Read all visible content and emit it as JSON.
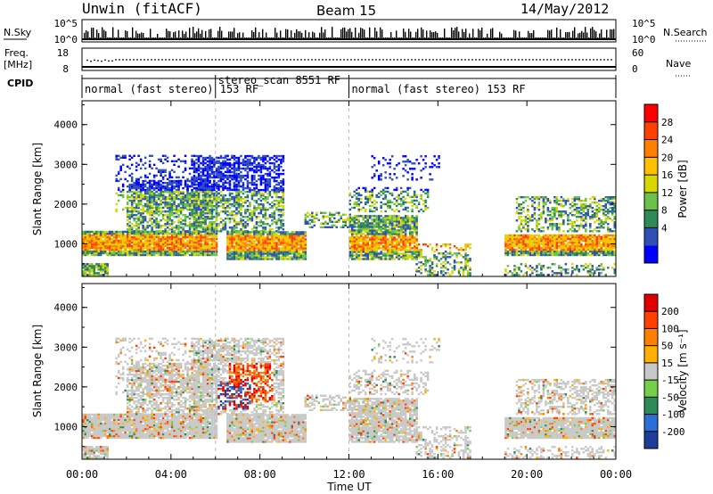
{
  "header": {
    "title": "Unwin (fitACF)",
    "beam": "Beam 15",
    "date": "14/May/2012"
  },
  "top_panel": {
    "nsky_label": "N.Sky",
    "nsky_ticks": [
      "10^5",
      "10^0"
    ],
    "nsearch_label": "N.Search",
    "nsearch_ticks": [
      "10^5",
      "10^0"
    ],
    "freq_label": "Freq.",
    "freq_unit": "[MHz]",
    "freq_ticks": [
      "18",
      "8"
    ],
    "nave_label": "Nave",
    "nave_ticks": [
      "60",
      "0"
    ],
    "cpid_label": "CPID",
    "cpid_segments": [
      {
        "label": "normal (fast stereo) 153 RF",
        "start_hour": 0,
        "end_hour": 6
      },
      {
        "label": "stereo_scan 8551 RF",
        "start_hour": 6,
        "end_hour": 12
      },
      {
        "label": "normal (fast stereo) 153 RF",
        "start_hour": 12,
        "end_hour": 24
      }
    ]
  },
  "chart_data": [
    {
      "type": "heatmap",
      "panel": "power",
      "ylabel": "Slant Range [km]",
      "ylim": [
        180,
        4600
      ],
      "yticks": [
        "4000",
        "3000",
        "2000",
        "1000"
      ],
      "xlim": [
        "00:00",
        "24:00"
      ],
      "colorbar_label": "Power [dB]",
      "colorbar_ticks": [
        "28",
        "24",
        "20",
        "16",
        "12",
        "8",
        "4"
      ],
      "colorbar_colors": [
        "#0000ff",
        "#2e4fb4",
        "#2e8b57",
        "#6ac24a",
        "#d8d800",
        "#ffc000",
        "#ff8000",
        "#ff4000",
        "#ff0000"
      ]
    },
    {
      "type": "heatmap",
      "panel": "velocity",
      "ylabel": "Slant Range [km]",
      "ylim": [
        180,
        4600
      ],
      "yticks": [
        "4000",
        "3000",
        "2000",
        "1000"
      ],
      "xlim": [
        "00:00",
        "24:00"
      ],
      "xlabel": "Time UT",
      "xticks": [
        "00:00",
        "04:00",
        "08:00",
        "12:00",
        "16:00",
        "20:00",
        "00:00"
      ],
      "colorbar_label": "Velocity [m s⁻¹]",
      "colorbar_ticks": [
        "200",
        "100",
        "50",
        "15",
        "-15",
        "-50",
        "-100",
        "-200"
      ],
      "colorbar_colors": [
        "#1e3c9a",
        "#2a6fd6",
        "#2e8b57",
        "#74d04a",
        "#c8c8c8",
        "#ffb000",
        "#ff8000",
        "#ff4000",
        "#e00000"
      ]
    }
  ]
}
